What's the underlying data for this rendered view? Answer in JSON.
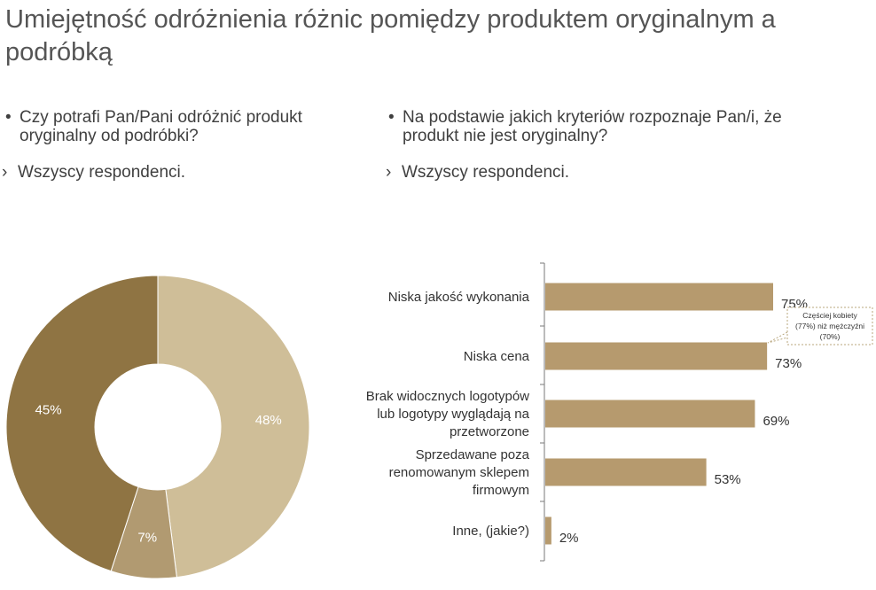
{
  "title": "Umiejętność odróżnienia różnic pomiędzy produktem oryginalnym a podróbką",
  "left": {
    "question": "Czy potrafi Pan/Pani odróżnić produkt oryginalny od podróbki?",
    "respondents": "Wszyscy respondenci."
  },
  "right": {
    "question": "Na podstawie jakich kryteriów rozpoznaje Pan/i, że produkt nie jest oryginalny?",
    "respondents": "Wszyscy respondenci."
  },
  "bullet_glyph": "•",
  "respondent_glyph": "›",
  "callout": {
    "lines": [
      "Częściej kobiety",
      "(77%) niż mężczyźni",
      "(70%)"
    ]
  },
  "colors": {
    "donut_dark": "#8f7443",
    "donut_light": "#cfbe98",
    "donut_mid": "#b19a71",
    "bar": "#b69a6e",
    "axis": "#7a7a7a"
  },
  "chart_data": [
    {
      "type": "pie",
      "variant": "donut",
      "slices": [
        {
          "label": "48%",
          "value": 48
        },
        {
          "label": "7%",
          "value": 7
        },
        {
          "label": "45%",
          "value": 45
        }
      ]
    },
    {
      "type": "bar",
      "orientation": "horizontal",
      "categories": [
        [
          "Niska jakość wykonania"
        ],
        [
          "Niska cena"
        ],
        [
          "Brak  widocznych logotypów",
          "lub logotypy wyglądają na",
          "przetworzone"
        ],
        [
          "Sprzedawane poza",
          "renomowanym sklepem",
          "firmowym"
        ],
        [
          "Inne, (jakie?)"
        ]
      ],
      "values": [
        75,
        73,
        69,
        53,
        2
      ],
      "data_labels": [
        "75%",
        "73%",
        "69%",
        "53%",
        "2%"
      ],
      "xlim": [
        0,
        100
      ]
    }
  ]
}
